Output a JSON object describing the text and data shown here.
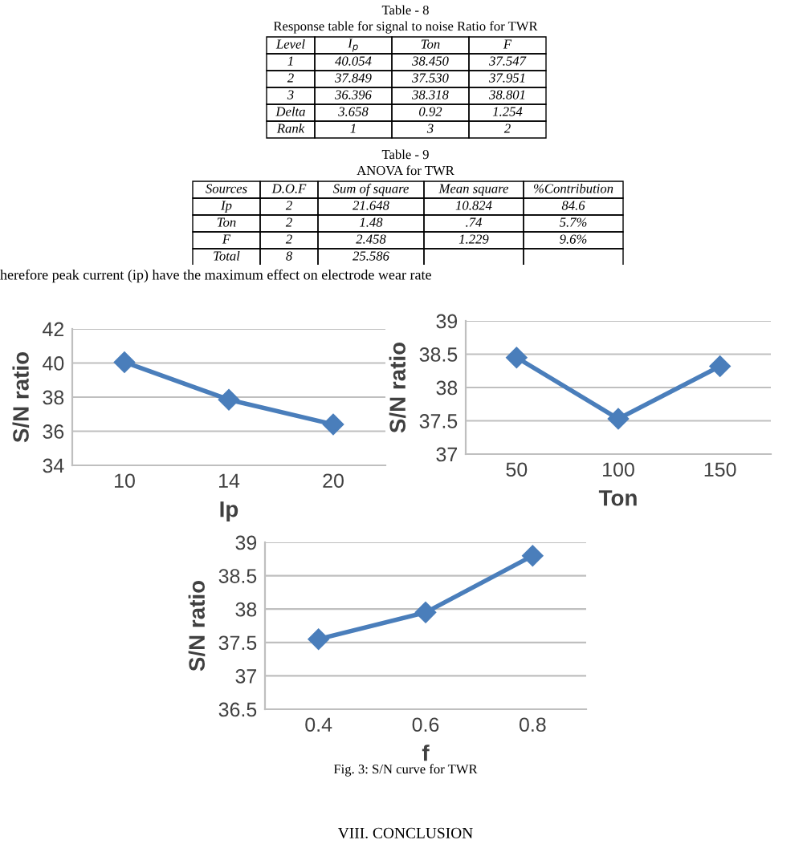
{
  "chart_data": [
    {
      "type": "other",
      "title": "Table - 8",
      "subtitle": "Response table for signal to noise Ratio for TWR",
      "categories": [
        "Level",
        "I$_{p}$",
        "Ton",
        "F"
      ],
      "annotations": [
        "1",
        "40.054",
        "38.450",
        "37.547",
        "2",
        "37.849",
        "37.530",
        "37.951",
        "3",
        "36.396",
        "38.318",
        "38.801",
        "Delta",
        "3.658",
        "0.92",
        "1.254",
        "Rank",
        "1",
        "3",
        "2"
      ]
    },
    {
      "type": "other",
      "title": "Table - 9",
      "subtitle": "ANOVA for TWR",
      "categories": [
        "Sources",
        "D.O.F",
        "Sum of square",
        "Mean square",
        "%Contribution"
      ],
      "annotations": [
        "Ip",
        "2",
        "21.648",
        "10.824",
        "84.6",
        "Ton",
        "2",
        "1.48",
        ".74",
        "5.7%",
        "F",
        "2",
        "2.458",
        "1.229",
        "9.6%",
        "Total",
        "8",
        "25.586"
      ]
    },
    {
      "type": "other",
      "annotations": [
        "herefore peak current (ip) have the maximum effect on electrode wear rate"
      ]
    },
    {
      "type": "line",
      "categories": [
        "10",
        "14",
        "20"
      ],
      "xlabel": "Ip",
      "ylabel": "S/N ratio",
      "ylim": [
        34,
        42
      ],
      "yticks": [
        34,
        36,
        38,
        40,
        42
      ],
      "grid": "y",
      "marker": "diamond",
      "series": [
        {
          "color": "#4a7ebb",
          "values": [
            40.05,
            37.85,
            36.4
          ]
        }
      ]
    },
    {
      "type": "line",
      "categories": [
        "50",
        "100",
        "150"
      ],
      "xlabel": "Ton",
      "ylabel": "S/N ratio",
      "ylim": [
        37,
        39
      ],
      "yticks": [
        37,
        {
          "value": 37.5,
          "label": "37.5"
        },
        38,
        {
          "value": 38.5,
          "label": "38.5"
        },
        39
      ],
      "grid": "y",
      "marker": "diamond",
      "series": [
        {
          "color": "#4a7ebb",
          "values": [
            38.45,
            37.53,
            38.32
          ]
        }
      ]
    },
    {
      "type": "line",
      "categories": [
        "0.4",
        "0.6",
        "0.8"
      ],
      "xlabel": "f",
      "ylabel": "S/N ratio",
      "ylim": [
        36.5,
        39
      ],
      "yticks": [
        {
          "value": 36.5,
          "label": "36.5"
        },
        37,
        {
          "value": 37.5,
          "label": "37.5"
        },
        38,
        {
          "value": 38.5,
          "label": "38.5"
        },
        39
      ],
      "grid": "y",
      "marker": "diamond",
      "series": [
        {
          "color": "#4a7ebb",
          "values": [
            37.55,
            37.95,
            38.8
          ]
        }
      ]
    },
    {
      "type": "other",
      "annotations": [
        "Fig. 3: S/N curve for TWR",
        "VIII. CONCLUSION"
      ]
    }
  ]
}
